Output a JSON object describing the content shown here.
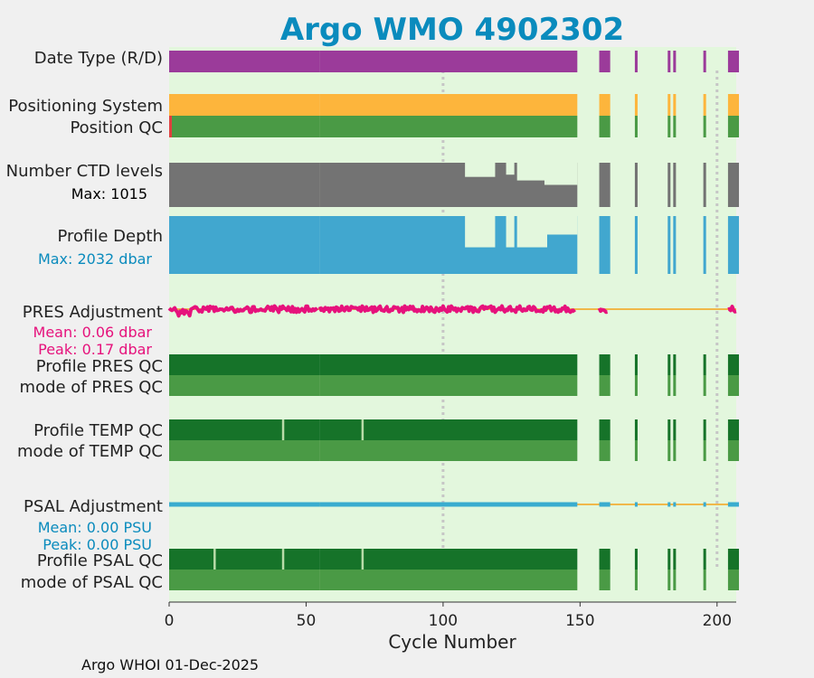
{
  "title": "Argo WMO 4902302",
  "footer": "Argo WHOI 01-Dec-2025",
  "colors": {
    "title": "#0a8bbd",
    "background": "#f0f0f0",
    "plot_bg": "#e3f7dd",
    "data_type": "#9b3b9a",
    "positioning": "#fdb53c",
    "qc_good": "#4a9a45",
    "qc_dark": "#167329",
    "qc_bad": "#e04040",
    "ctd": "#737373",
    "depth": "#41a7cf",
    "pres_adj": "#e6127c",
    "psal_adj": "#3aaccf",
    "zero_line": "#f0b84a",
    "info_blue": "#0a8bbd",
    "info_magenta": "#e6127c",
    "grid": "#c6c6c6"
  },
  "chart_data": {
    "type": "timeline",
    "xlabel": "Cycle Number",
    "xlim": [
      0,
      207
    ],
    "xticks": [
      0,
      50,
      100,
      150,
      200
    ],
    "vgrid": [
      100,
      200
    ],
    "cycles_present": {
      "ranges": [
        [
          0,
          54
        ],
        [
          55,
          148
        ],
        [
          157,
          160
        ],
        [
          170,
          170
        ],
        [
          182,
          182
        ],
        [
          184,
          184
        ],
        [
          195,
          195
        ],
        [
          204,
          207
        ]
      ]
    },
    "rows": [
      {
        "label": "Date Type (R/D)",
        "kind": "bar",
        "color": "data_type"
      },
      {
        "label": "Positioning System",
        "kind": "bar",
        "color": "positioning"
      },
      {
        "label": "Position QC",
        "kind": "bar",
        "color": "qc_good",
        "bad_cycles": [
          0
        ]
      },
      {
        "label": "Number CTD levels",
        "info": "Max: 1015",
        "info_color": "#000000",
        "kind": "levels",
        "color": "ctd",
        "max": 1015,
        "reduced": [
          [
            108,
            118,
            0.68
          ],
          [
            123,
            125,
            0.73
          ],
          [
            127,
            137,
            0.6
          ],
          [
            137,
            148,
            0.5
          ]
        ]
      },
      {
        "label": "Profile Depth",
        "info": "Max: 2032 dbar",
        "info_color": "info_blue",
        "kind": "levels",
        "color": "depth",
        "max": 2032,
        "reduced": [
          [
            108,
            118,
            0.46
          ],
          [
            123,
            125,
            0.46
          ],
          [
            127,
            137,
            0.46
          ],
          [
            137,
            148,
            0.68
          ]
        ]
      },
      {
        "label": "PRES Adjustment",
        "info": [
          "Mean: 0.06 dbar",
          "Peak: 0.17 dbar"
        ],
        "info_color": "info_magenta",
        "kind": "adjust",
        "color": "pres_adj",
        "mean": 0.06,
        "peak": 0.17,
        "unit": "dbar"
      },
      {
        "label": "Profile PRES QC",
        "kind": "bar",
        "color": "qc_dark"
      },
      {
        "label": "mode of PRES QC",
        "kind": "bar",
        "color": "qc_good"
      },
      {
        "label": "Profile TEMP QC",
        "kind": "bar",
        "color": "qc_dark",
        "light_ticks": [
          41,
          70
        ]
      },
      {
        "label": "mode of TEMP QC",
        "kind": "bar",
        "color": "qc_good"
      },
      {
        "label": "PSAL Adjustment",
        "info": [
          "Mean: 0.00 PSU",
          "Peak: 0.00 PSU"
        ],
        "info_color": "info_blue",
        "kind": "adjust",
        "color": "psal_adj",
        "mean": 0.0,
        "peak": 0.0,
        "unit": "PSU"
      },
      {
        "label": "Profile PSAL QC",
        "kind": "bar",
        "color": "qc_dark",
        "light_ticks": [
          16,
          41,
          70
        ]
      },
      {
        "label": "mode of PSAL QC",
        "kind": "bar",
        "color": "qc_good"
      }
    ]
  }
}
